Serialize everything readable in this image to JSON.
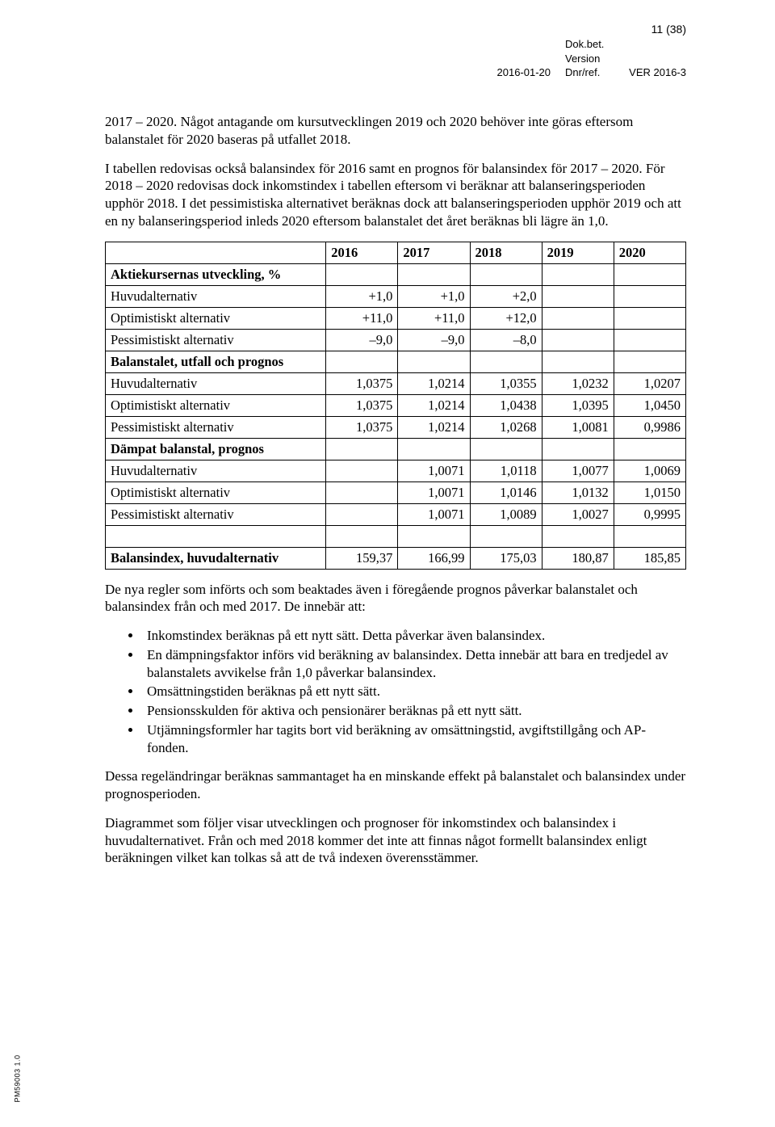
{
  "header": {
    "page_num": "11 (38)",
    "date": "2016-01-20",
    "dokbet_label": "Dok.bet.",
    "version_label": "Version",
    "dnr_label": "Dnr/ref.",
    "dnr_value": "VER 2016-3"
  },
  "para1": "2017 – 2020. Något antagande om kursutvecklingen 2019 och 2020 behöver inte göras eftersom balanstalet för 2020 baseras på utfallet 2018.",
  "para2": "I tabellen redovisas också balansindex för 2016 samt en prognos för balansindex för 2017 – 2020. För 2018 – 2020 redovisas dock inkomstindex i tabellen eftersom vi beräknar att balanseringsperioden upphör 2018. I det pessimistiska alternativet beräknas dock att balanseringsperioden upphör 2019 och att en ny balanseringsperiod inleds 2020 eftersom balanstalet det året beräknas bli lägre än 1,0.",
  "table": {
    "years": [
      "2016",
      "2017",
      "2018",
      "2019",
      "2020"
    ],
    "col_widths": [
      "38%",
      "12.4%",
      "12.4%",
      "12.4%",
      "12.4%",
      "12.4%"
    ],
    "rows": [
      {
        "label": "Aktiekursernas utveckling, %",
        "bold": true,
        "vals": [
          "",
          "",
          "",
          "",
          ""
        ]
      },
      {
        "label": "Huvudalternativ",
        "vals": [
          "+1,0",
          "+1,0",
          "+2,0",
          "",
          ""
        ]
      },
      {
        "label": "Optimistiskt alternativ",
        "vals": [
          "+11,0",
          "+11,0",
          "+12,0",
          "",
          ""
        ]
      },
      {
        "label": "Pessimistiskt alternativ",
        "vals": [
          "–9,0",
          "–9,0",
          "–8,0",
          "",
          ""
        ]
      },
      {
        "label": "Balanstalet, utfall och prognos",
        "bold": true,
        "vals": [
          "",
          "",
          "",
          "",
          ""
        ]
      },
      {
        "label": "Huvudalternativ",
        "vals": [
          "1,0375",
          "1,0214",
          "1,0355",
          "1,0232",
          "1,0207"
        ]
      },
      {
        "label": "Optimistiskt alternativ",
        "vals": [
          "1,0375",
          "1,0214",
          "1,0438",
          "1,0395",
          "1,0450"
        ]
      },
      {
        "label": "Pessimistiskt alternativ",
        "vals": [
          "1,0375",
          "1,0214",
          "1,0268",
          "1,0081",
          "0,9986"
        ]
      },
      {
        "label": "Dämpat balanstal, prognos",
        "bold": true,
        "vals": [
          "",
          "",
          "",
          "",
          ""
        ]
      },
      {
        "label": "Huvudalternativ",
        "vals": [
          "",
          "1,0071",
          "1,0118",
          "1,0077",
          "1,0069"
        ]
      },
      {
        "label": "Optimistiskt alternativ",
        "vals": [
          "",
          "1,0071",
          "1,0146",
          "1,0132",
          "1,0150"
        ]
      },
      {
        "label": "Pessimistiskt alternativ",
        "vals": [
          "",
          "1,0071",
          "1,0089",
          "1,0027",
          "0,9995"
        ]
      },
      {
        "label": "",
        "vals": [
          "",
          "",
          "",
          "",
          ""
        ]
      },
      {
        "label": "Balansindex, huvudalternativ",
        "bold": true,
        "vals": [
          "159,37",
          "166,99",
          "175,03",
          "180,87",
          "185,85"
        ]
      }
    ]
  },
  "para3": "De nya regler som införts och som beaktades även i föregående prognos påverkar balanstalet och balansindex från och med 2017. De innebär att:",
  "bullets": [
    "Inkomstindex beräknas på ett nytt sätt. Detta påverkar även balansindex.",
    "En dämpningsfaktor införs vid beräkning av balansindex. Detta innebär att bara en tredjedel av balanstalets avvikelse från 1,0 påverkar balansindex.",
    "Omsättningstiden beräknas på ett nytt sätt.",
    "Pensionsskulden för aktiva och pensionärer beräknas på ett nytt sätt.",
    "Utjämningsformler har tagits bort vid beräkning av omsättningstid, avgiftstillgång och AP-fonden."
  ],
  "para4": "Dessa regeländringar beräknas sammantaget ha en minskande effekt på balanstalet och balansindex under prognosperioden.",
  "para5": "Diagrammet som följer visar utvecklingen och prognoser för inkomstindex och balansindex i huvudalternativet. Från och med 2018 kommer det inte att finnas något formellt balansindex enligt beräkningen vilket kan tolkas så att de två indexen överensstämmer.",
  "footer_code": "PM59003 1.0"
}
